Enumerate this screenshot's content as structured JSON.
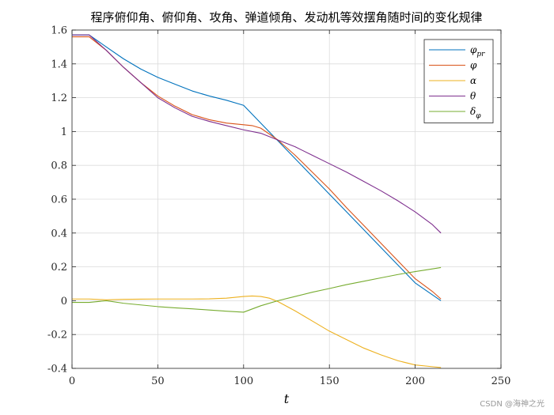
{
  "chart_data": {
    "type": "line",
    "title": "程序俯仰角、俯仰角、攻角、弹道倾角、发动机等效摆角随时间的变化规律",
    "xlabel": "t",
    "ylabel": "",
    "xlim": [
      0,
      250
    ],
    "ylim": [
      -0.4,
      1.6
    ],
    "xticks": [
      "0",
      "50",
      "100",
      "150",
      "200",
      "250"
    ],
    "yticks": [
      "-0.4",
      "-0.2",
      "0",
      "0.2",
      "0.4",
      "0.6",
      "0.8",
      "1",
      "1.2",
      "1.4",
      "1.6"
    ],
    "grid": true,
    "legend_position": "top-right",
    "series": [
      {
        "name": "φ_pr",
        "label_main": "φ",
        "label_sub": "pr",
        "color": "#0072BD",
        "x": [
          0,
          10,
          20,
          30,
          40,
          50,
          60,
          70,
          80,
          90,
          100,
          110,
          120,
          130,
          140,
          150,
          160,
          170,
          180,
          190,
          200,
          210,
          215
        ],
        "y": [
          1.571,
          1.571,
          1.5,
          1.43,
          1.37,
          1.32,
          1.28,
          1.24,
          1.21,
          1.185,
          1.155,
          1.05,
          0.945,
          0.84,
          0.735,
          0.63,
          0.525,
          0.42,
          0.315,
          0.21,
          0.105,
          0.035,
          0.0
        ]
      },
      {
        "name": "φ",
        "label_main": "φ",
        "label_sub": "",
        "color": "#D95319",
        "x": [
          0,
          10,
          20,
          30,
          40,
          50,
          60,
          70,
          80,
          90,
          100,
          105,
          110,
          120,
          130,
          140,
          150,
          160,
          170,
          180,
          190,
          200,
          210,
          215
        ],
        "y": [
          1.56,
          1.56,
          1.48,
          1.38,
          1.29,
          1.21,
          1.15,
          1.1,
          1.07,
          1.05,
          1.04,
          1.035,
          1.02,
          0.95,
          0.86,
          0.76,
          0.66,
          0.55,
          0.445,
          0.34,
          0.235,
          0.13,
          0.055,
          0.01
        ]
      },
      {
        "name": "α",
        "label_main": "α",
        "label_sub": "",
        "color": "#EDB120",
        "x": [
          0,
          10,
          20,
          30,
          40,
          50,
          60,
          70,
          80,
          90,
          100,
          105,
          110,
          115,
          120,
          130,
          140,
          150,
          160,
          170,
          180,
          190,
          200,
          210,
          215
        ],
        "y": [
          0.01,
          0.01,
          0.005,
          0.008,
          0.009,
          0.01,
          0.01,
          0.01,
          0.011,
          0.015,
          0.025,
          0.028,
          0.025,
          0.015,
          -0.005,
          -0.06,
          -0.12,
          -0.18,
          -0.23,
          -0.28,
          -0.32,
          -0.355,
          -0.38,
          -0.39,
          -0.395
        ]
      },
      {
        "name": "θ",
        "label_main": "θ",
        "label_sub": "",
        "color": "#7E2F8E",
        "x": [
          0,
          10,
          20,
          30,
          40,
          50,
          60,
          70,
          80,
          90,
          100,
          110,
          120,
          130,
          140,
          150,
          160,
          170,
          180,
          190,
          200,
          210,
          215
        ],
        "y": [
          1.571,
          1.571,
          1.48,
          1.38,
          1.29,
          1.2,
          1.14,
          1.09,
          1.06,
          1.035,
          1.01,
          0.99,
          0.95,
          0.91,
          0.86,
          0.81,
          0.76,
          0.705,
          0.65,
          0.59,
          0.525,
          0.45,
          0.4
        ]
      },
      {
        "name": "δ_φ",
        "label_main": "δ",
        "label_sub": "φ",
        "color": "#77AC30",
        "x": [
          0,
          10,
          20,
          30,
          40,
          50,
          60,
          70,
          80,
          90,
          100,
          110,
          120,
          130,
          140,
          150,
          160,
          170,
          180,
          190,
          200,
          210,
          215
        ],
        "y": [
          -0.01,
          -0.01,
          0.0,
          -0.015,
          -0.025,
          -0.035,
          -0.042,
          -0.048,
          -0.055,
          -0.062,
          -0.068,
          -0.03,
          0.0,
          0.025,
          0.05,
          0.072,
          0.095,
          0.115,
          0.135,
          0.155,
          0.172,
          0.188,
          0.196
        ]
      }
    ]
  },
  "watermark": "CSDN @海神之光"
}
